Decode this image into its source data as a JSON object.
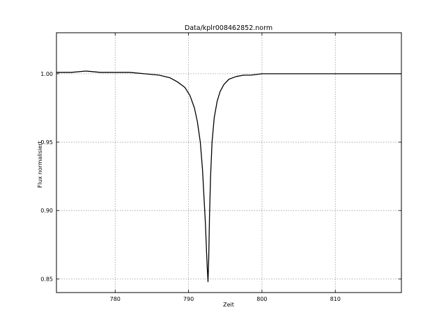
{
  "chart_data": {
    "type": "line",
    "title": "Data/kplr008462852.norm",
    "xlabel": "Zeit",
    "ylabel": "Flux normalisiert",
    "xlim": [
      772,
      819
    ],
    "ylim": [
      0.84,
      1.03
    ],
    "grid": true,
    "x_ticks": [
      780,
      790,
      800,
      810
    ],
    "y_ticks": [
      0.85,
      0.9,
      0.95,
      1.0
    ],
    "x_tick_labels": [
      "780",
      "790",
      "800",
      "810"
    ],
    "y_tick_labels": [
      "0.85",
      "0.90",
      "0.95",
      "1.00"
    ],
    "line_color": "#000000",
    "series": [
      {
        "x": [
          772.0,
          774.0,
          776.0,
          778.0,
          780.0,
          782.0,
          784.0,
          786.0,
          787.5,
          788.5,
          789.5,
          790.2,
          790.8,
          791.2,
          791.6,
          791.9,
          792.1,
          792.3,
          792.45,
          792.55,
          792.65,
          792.75,
          792.85,
          793.0,
          793.2,
          793.5,
          793.9,
          794.3,
          794.8,
          795.5,
          796.5,
          797.5,
          798.5,
          800.0,
          802.0,
          806.0,
          810.0,
          814.0,
          819.0
        ],
        "y": [
          1.001,
          1.001,
          1.002,
          1.001,
          1.001,
          1.001,
          1.0,
          0.999,
          0.997,
          0.994,
          0.99,
          0.984,
          0.975,
          0.965,
          0.95,
          0.93,
          0.91,
          0.89,
          0.87,
          0.858,
          0.848,
          0.865,
          0.895,
          0.925,
          0.95,
          0.968,
          0.98,
          0.987,
          0.992,
          0.996,
          0.998,
          0.999,
          0.999,
          1.0,
          1.0,
          1.0,
          1.0,
          1.0,
          1.0
        ]
      }
    ]
  }
}
